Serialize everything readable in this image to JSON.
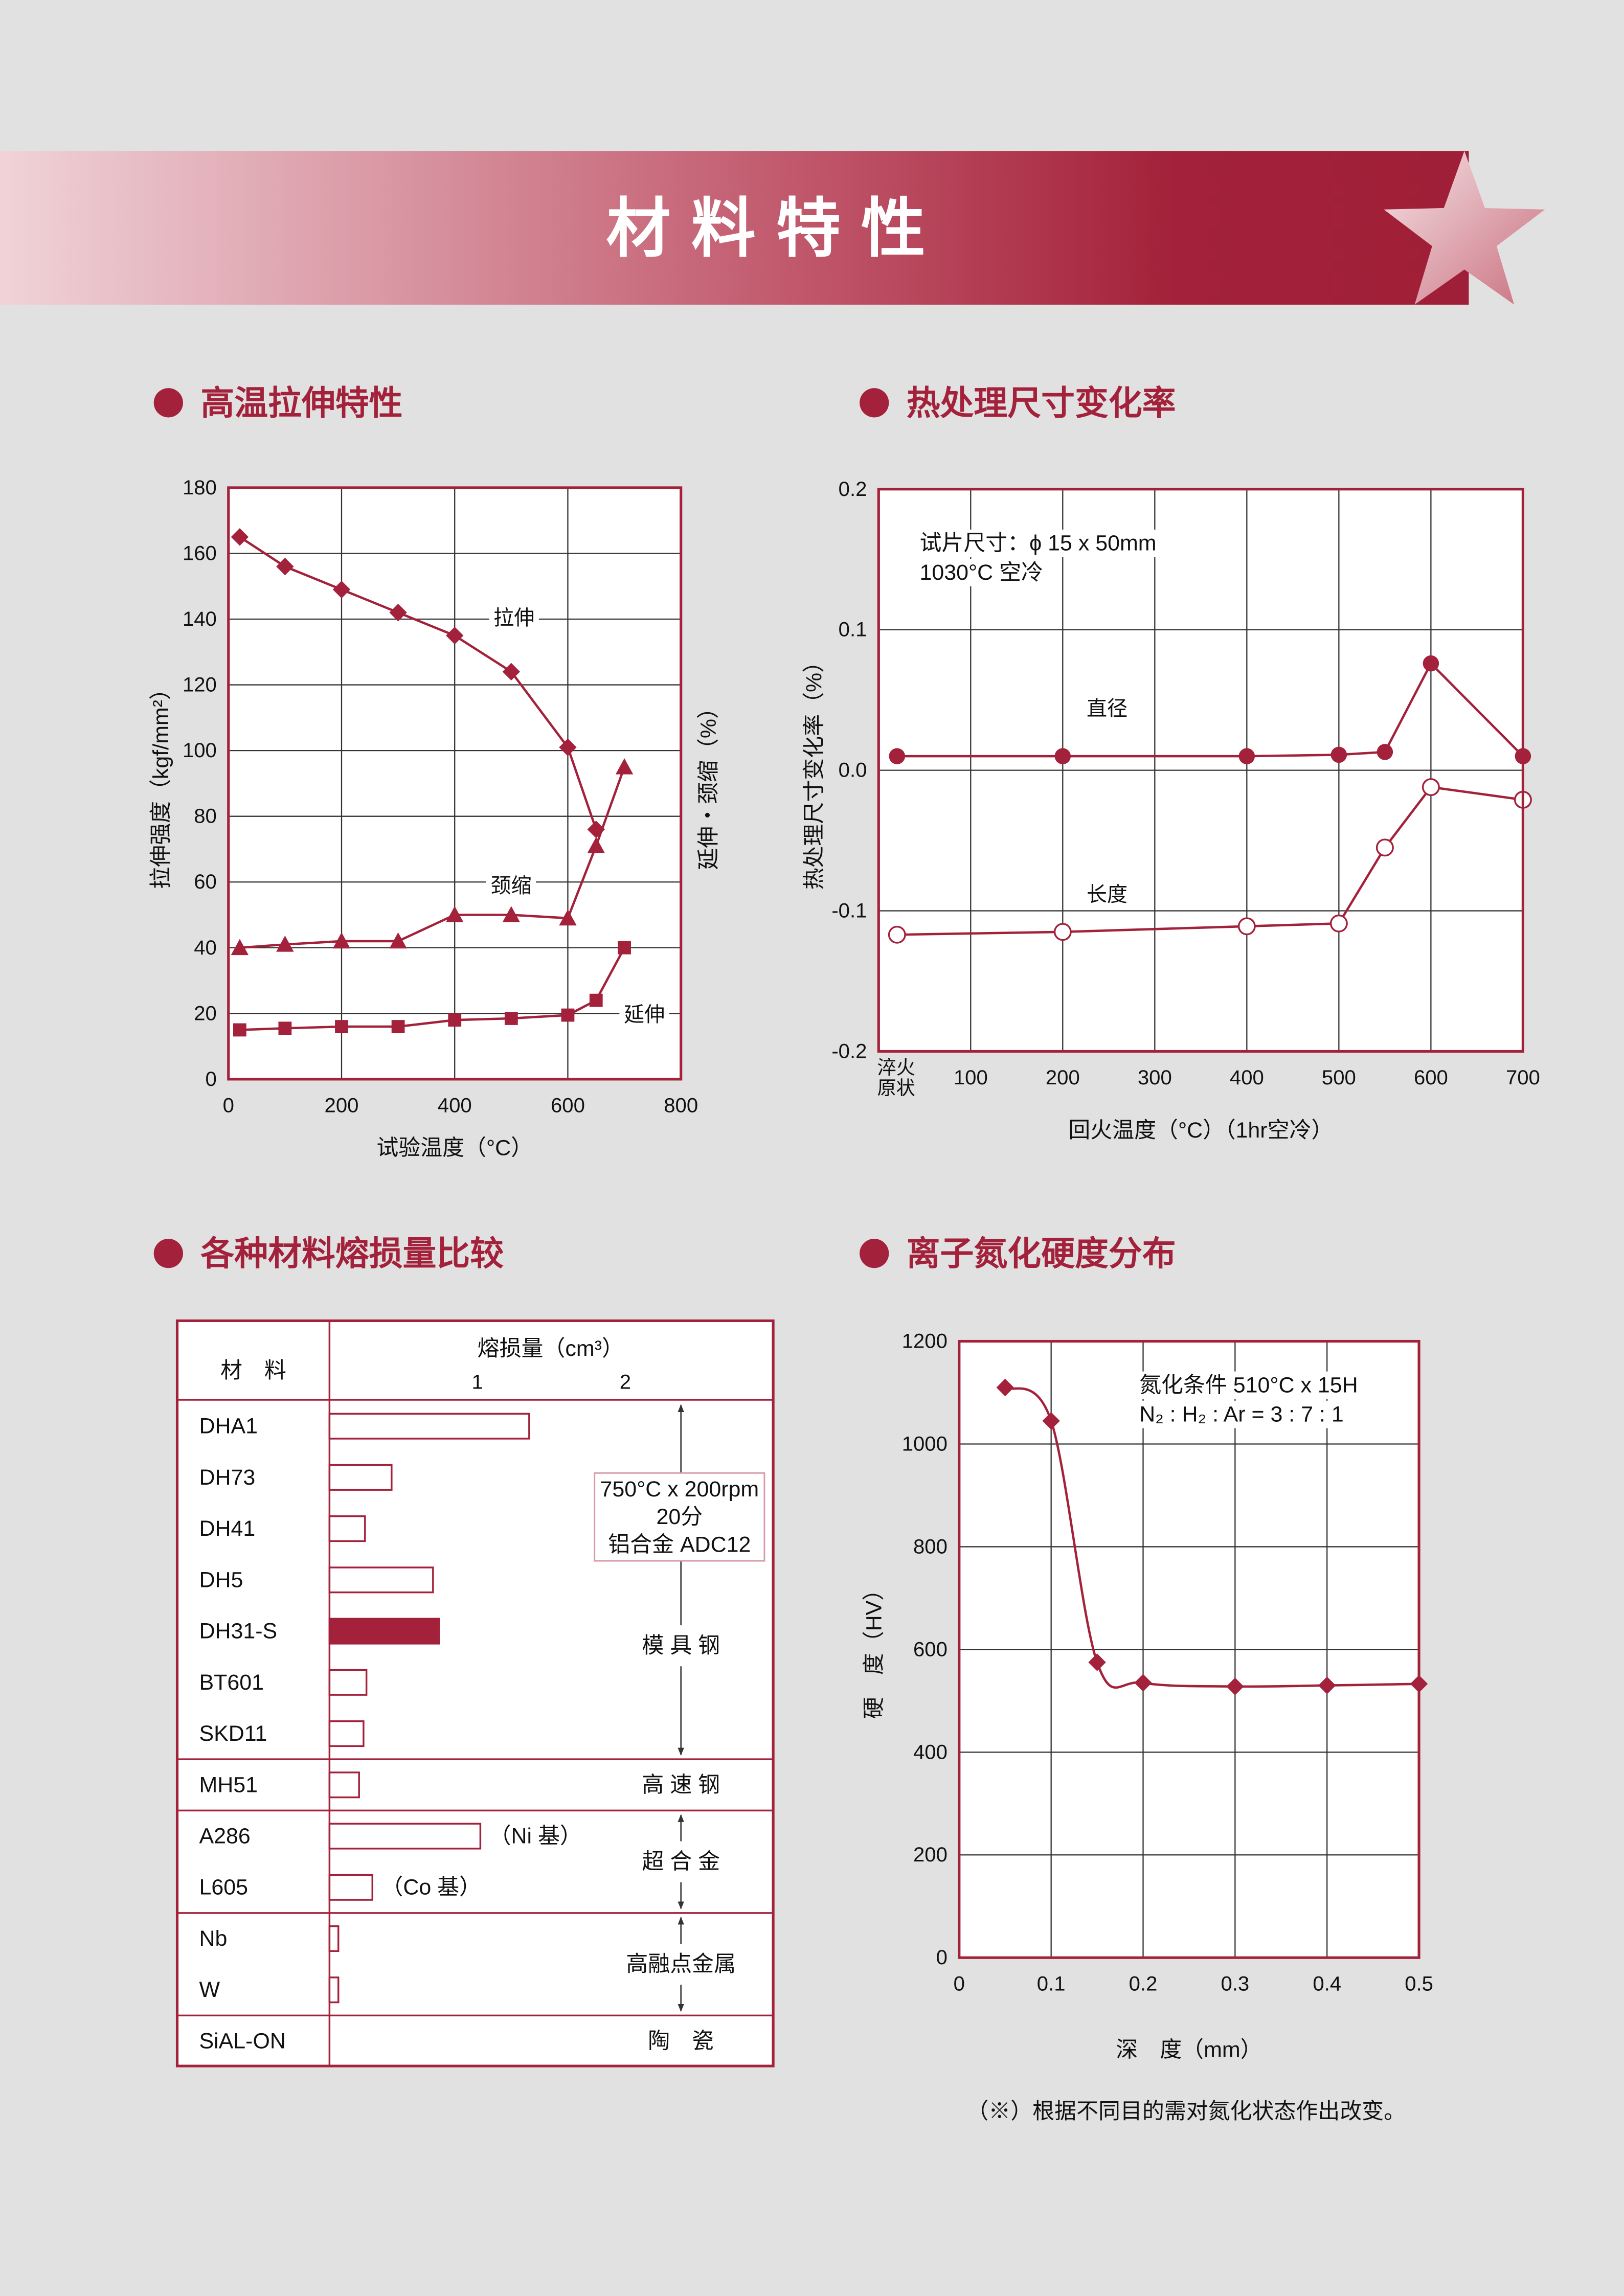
{
  "page_title": "材料特性",
  "chart_data": [
    {
      "type": "line",
      "title": "高温拉伸特性",
      "x_label": "试验温度（°C）",
      "y_label": "拉伸强度（kgf/mm²）",
      "y2_label": "延伸・颈缩（%）",
      "xlim": [
        0,
        800
      ],
      "xticks": [
        0,
        200,
        400,
        600,
        800
      ],
      "ylim": [
        0,
        180
      ],
      "yticks": [
        0,
        20,
        40,
        60,
        80,
        100,
        120,
        140,
        160,
        180
      ],
      "grid": true,
      "series": [
        {
          "name": "拉伸",
          "color": "#a3213a",
          "marker": "diamond",
          "x": [
            20,
            100,
            200,
            300,
            400,
            500,
            600,
            650
          ],
          "values": [
            165,
            156,
            149,
            142,
            135,
            124,
            101,
            76
          ]
        },
        {
          "name": "颈缩",
          "color": "#a3213a",
          "marker": "triangle",
          "x": [
            20,
            100,
            200,
            300,
            400,
            500,
            600,
            650,
            700
          ],
          "values": [
            40,
            41,
            42,
            42,
            50,
            50,
            49,
            71,
            95
          ]
        },
        {
          "name": "延伸",
          "color": "#a3213a",
          "marker": "square",
          "x": [
            20,
            100,
            200,
            300,
            400,
            500,
            600,
            650,
            700
          ],
          "values": [
            15,
            15.5,
            16,
            16,
            18,
            18.5,
            19.5,
            24,
            40
          ]
        }
      ]
    },
    {
      "type": "line",
      "title": "热处理尺寸变化率",
      "annotation": [
        "试片尺寸：ϕ 15 x 50mm",
        "1030°C 空冷"
      ],
      "x_label": "回火温度（°C）（1hr空冷）",
      "y_label": "热处理尺寸变化率（%）",
      "xlim": [
        0,
        700
      ],
      "xticks": [
        {
          "value": 0,
          "label": "淬火原状"
        },
        100,
        200,
        300,
        400,
        500,
        600,
        700
      ],
      "ylim": [
        -0.2,
        0.2
      ],
      "yticks": [
        -0.2,
        -0.1,
        {
          "value": 0,
          "label": "0.0"
        },
        0.1,
        0.2
      ],
      "grid": true,
      "x": [
        20,
        200,
        400,
        500,
        550,
        600,
        700
      ],
      "series": [
        {
          "name": "直径",
          "color": "#a3213a",
          "marker": "circle",
          "values": [
            0.01,
            0.01,
            0.01,
            0.011,
            0.013,
            0.076,
            0.01
          ]
        },
        {
          "name": "长度",
          "color": "#a3213a",
          "marker": "open-circle",
          "values": [
            -0.117,
            -0.115,
            -0.111,
            -0.109,
            -0.055,
            -0.012,
            -0.021
          ]
        }
      ]
    },
    {
      "type": "hbar",
      "title": "各种材料熔损量比较",
      "header": "材　料",
      "x_label": "熔损量（cm³）",
      "xlim": [
        0,
        3
      ],
      "xticks": [
        1,
        2
      ],
      "color": "#a3213a",
      "categories": [
        "DHA1",
        "DH73",
        "DH41",
        "DH5",
        "DH31-S",
        "BT601",
        "SKD11",
        "MH51",
        "A286",
        "L605",
        "Nb",
        "W",
        "SiAL-ON"
      ],
      "values": [
        1.35,
        0.42,
        0.24,
        0.7,
        0.74,
        0.25,
        0.23,
        0.2,
        1.02,
        0.29,
        0.06,
        0.06,
        0
      ],
      "bar_fill": [
        "#ffffff",
        "#ffffff",
        "#ffffff",
        "#ffffff",
        "#a3213a",
        "#ffffff",
        "#ffffff",
        "#ffffff",
        "#ffffff",
        "#ffffff",
        "#ffffff",
        "#ffffff",
        "#ffffff"
      ],
      "value_notes": [
        null,
        null,
        null,
        null,
        null,
        null,
        null,
        null,
        "（Ni 基）",
        "（Co 基）",
        null,
        null,
        null
      ],
      "condition": [
        "750°C x 200rpm",
        "20分",
        "铝合金 ADC12"
      ],
      "groups": [
        {
          "label": "模 具 钢",
          "members": [
            "DHA1",
            "DH73",
            "DH41",
            "DH5",
            "DH31-S",
            "BT601",
            "SKD11"
          ]
        },
        {
          "label": "高 速 钢",
          "members": [
            "MH51"
          ]
        },
        {
          "label": "超 合 金",
          "members": [
            "A286",
            "L605"
          ]
        },
        {
          "label": "高融点金属",
          "members": [
            "Nb",
            "W"
          ]
        },
        {
          "label": "陶　瓷",
          "members": [
            "SiAL-ON"
          ]
        }
      ]
    },
    {
      "type": "line",
      "smooth": true,
      "title": "离子氮化硬度分布",
      "annotation": [
        "氮化条件 510°C x 15H",
        "N₂ : H₂ : Ar = 3 : 7 : 1"
      ],
      "x_label": "深　度（mm）",
      "y_label": "硬　度（HV）",
      "xlim": [
        0,
        0.5
      ],
      "xticks": [
        0,
        0.1,
        0.2,
        0.3,
        0.4,
        0.5
      ],
      "ylim": [
        0,
        1200
      ],
      "yticks": [
        0,
        200,
        400,
        600,
        800,
        1000,
        1200
      ],
      "grid": true,
      "x": [
        0.05,
        0.1,
        0.15,
        0.2,
        0.3,
        0.4,
        0.5
      ],
      "series": [
        {
          "color": "#a3213a",
          "marker": "diamond",
          "values": [
            1110,
            1045,
            575,
            535,
            528,
            530,
            533
          ]
        }
      ]
    }
  ],
  "note": "（※）根据不同目的需对氮化状态作出改变。"
}
